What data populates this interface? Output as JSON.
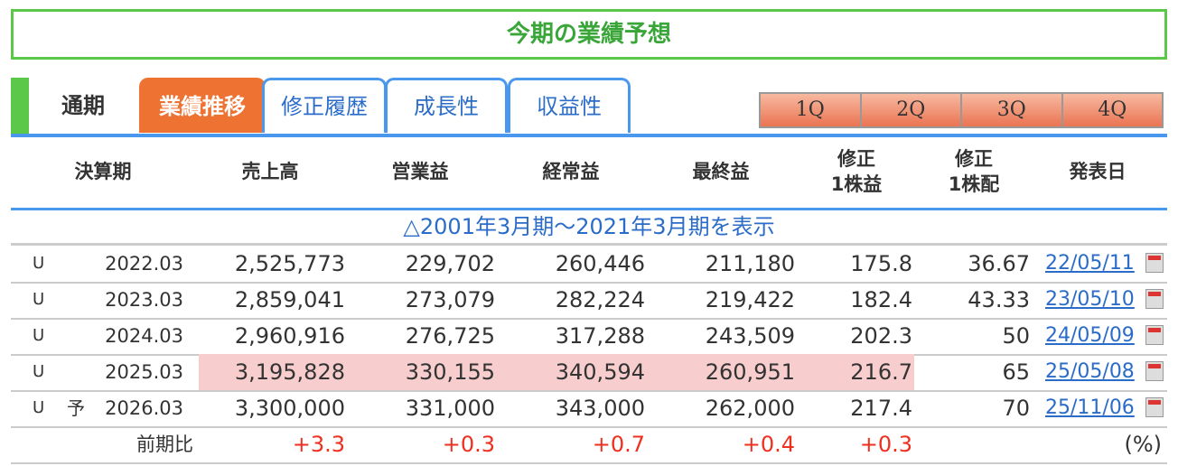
{
  "title": "今期の業績予想",
  "tabs": {
    "current": "通期",
    "items": [
      "業績推移",
      "修正履歴",
      "成長性",
      "収益性"
    ]
  },
  "quarters": [
    "1Q",
    "2Q",
    "3Q",
    "4Q"
  ],
  "headers": [
    "決算期",
    "売上高",
    "営業益",
    "経常益",
    "最終益",
    "修正\n1株益",
    "修正\n1株配",
    "発表日"
  ],
  "range_link": "△2001年3月期〜2021年3月期を表示",
  "rows": [
    {
      "mark": "U",
      "flag": "",
      "period": "2022.03",
      "sales": "2,525,773",
      "op": "229,702",
      "ord": "260,446",
      "net": "211,180",
      "eps": "175.8",
      "div": "36.67",
      "date": "22/05/11"
    },
    {
      "mark": "U",
      "flag": "",
      "period": "2023.03",
      "sales": "2,859,041",
      "op": "273,079",
      "ord": "282,224",
      "net": "219,422",
      "eps": "182.4",
      "div": "43.33",
      "date": "23/05/10"
    },
    {
      "mark": "U",
      "flag": "",
      "period": "2024.03",
      "sales": "2,960,916",
      "op": "276,725",
      "ord": "317,288",
      "net": "243,509",
      "eps": "202.3",
      "div": "50",
      "date": "24/05/09"
    },
    {
      "mark": "U",
      "flag": "",
      "period": "2025.03",
      "sales": "3,195,828",
      "op": "330,155",
      "ord": "340,594",
      "net": "260,951",
      "eps": "216.7",
      "div": "65",
      "date": "25/05/08"
    },
    {
      "mark": "U",
      "flag": "予",
      "period": "2026.03",
      "sales": "3,300,000",
      "op": "331,000",
      "ord": "343,000",
      "net": "262,000",
      "eps": "217.4",
      "div": "70",
      "date": "25/11/06"
    }
  ],
  "change": {
    "label": "前期比",
    "sales": "+3.3",
    "op": "+0.3",
    "ord": "+0.7",
    "net": "+0.4",
    "eps": "+0.3",
    "unit": "(%)"
  },
  "colors": {
    "accent_green": "#5cc84a",
    "tab_active": "#ee7232",
    "link_blue": "#2a6cc8",
    "highlight": "#f7cdcd",
    "positive": "#ee3020"
  }
}
